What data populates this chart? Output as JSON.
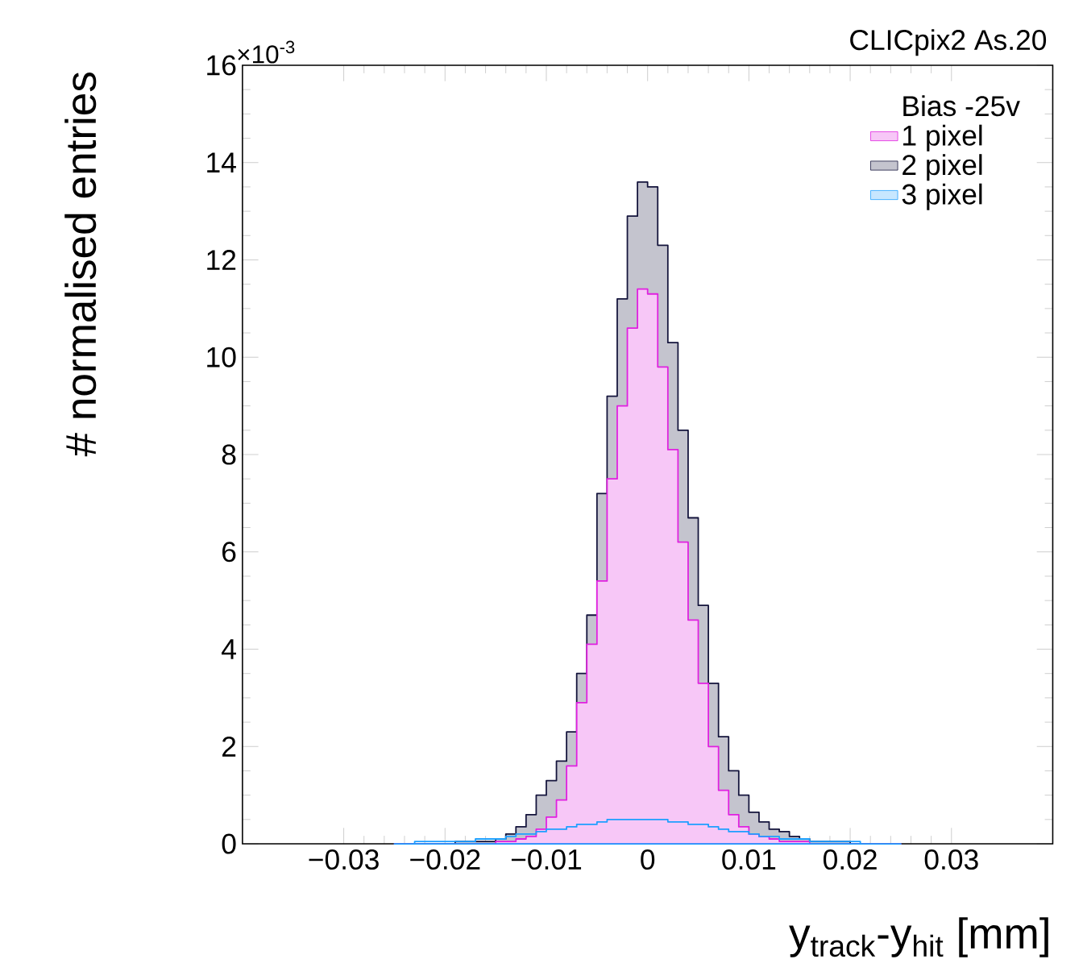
{
  "chart_data": {
    "type": "histogram",
    "title": "CLICpix2 As.20",
    "xlabel": "y$_{track}$-y$_{hit}$ [mm]",
    "ylabel": "# normalised entries",
    "legend_title": "Bias -25v",
    "annotations": [
      "×10$^{-3}$"
    ],
    "bins": [
      -0.025,
      -0.024,
      -0.023,
      -0.022,
      -0.021,
      -0.02,
      -0.019,
      -0.018,
      -0.017,
      -0.016,
      -0.015,
      -0.014,
      -0.013,
      -0.012,
      -0.011,
      -0.01,
      -0.009,
      -0.008,
      -0.007,
      -0.006,
      -0.005,
      -0.004,
      -0.003,
      -0.002,
      -0.001,
      0,
      0.001,
      0.002,
      0.003,
      0.004,
      0.005,
      0.006,
      0.007,
      0.008,
      0.009,
      0.01,
      0.011,
      0.012,
      0.013,
      0.014,
      0.015,
      0.016,
      0.017,
      0.018,
      0.019,
      0.02,
      0.021,
      0.022,
      0.023,
      0.024,
      0.025
    ],
    "series": [
      {
        "name": "1 pixel",
        "color": "#e020e0",
        "values": [
          0,
          0,
          0,
          0,
          0,
          0,
          0,
          0,
          0,
          0,
          0.05,
          0.05,
          0.1,
          0.15,
          0.3,
          0.55,
          0.9,
          1.6,
          2.9,
          4.1,
          5.4,
          7.5,
          9,
          10.6,
          11.4,
          11.3,
          9.8,
          8.1,
          6.2,
          4.6,
          3.3,
          2,
          1.1,
          0.6,
          0.35,
          0.2,
          0.15,
          0.1,
          0.05,
          0.05,
          0.05,
          0,
          0,
          0,
          0,
          0,
          0,
          0,
          0,
          0
        ]
      },
      {
        "name": "2 pixel",
        "color": "#14143c",
        "values": [
          0,
          0,
          0,
          0,
          0,
          0,
          0.05,
          0.05,
          0.05,
          0.05,
          0.1,
          0.2,
          0.35,
          0.6,
          1,
          1.3,
          1.7,
          2.3,
          3.5,
          4.7,
          7.2,
          9.2,
          11.2,
          12.9,
          13.6,
          13.5,
          12.3,
          10.3,
          8.5,
          6.7,
          4.9,
          3.3,
          2.2,
          1.5,
          1,
          0.65,
          0.45,
          0.3,
          0.25,
          0.15,
          0.1,
          0.05,
          0.05,
          0.05,
          0.05,
          0,
          0,
          0,
          0,
          0
        ]
      },
      {
        "name": "3 pixel",
        "color": "#1e9fff",
        "values": [
          0,
          0,
          0.05,
          0.05,
          0.05,
          0.05,
          0.05,
          0.05,
          0.1,
          0.1,
          0.1,
          0.15,
          0.2,
          0.2,
          0.25,
          0.3,
          0.3,
          0.35,
          0.4,
          0.4,
          0.45,
          0.5,
          0.5,
          0.5,
          0.5,
          0.5,
          0.5,
          0.45,
          0.45,
          0.4,
          0.4,
          0.35,
          0.3,
          0.25,
          0.25,
          0.2,
          0.15,
          0.15,
          0.1,
          0.1,
          0.1,
          0.05,
          0.05,
          0.05,
          0.05,
          0.05,
          0,
          0,
          0,
          0
        ]
      }
    ],
    "xlim": [
      -0.04,
      0.04
    ],
    "ylim": [
      0,
      16
    ],
    "xticks": [
      {
        "value": -0.03,
        "label": "−0.03"
      },
      {
        "value": -0.02,
        "label": "−0.02"
      },
      {
        "value": -0.01,
        "label": "−0.01"
      },
      0,
      0.01,
      0.02,
      0.03
    ],
    "yticks": [
      0,
      2,
      4,
      6,
      8,
      10,
      12,
      14,
      16
    ],
    "legend": "top right"
  }
}
